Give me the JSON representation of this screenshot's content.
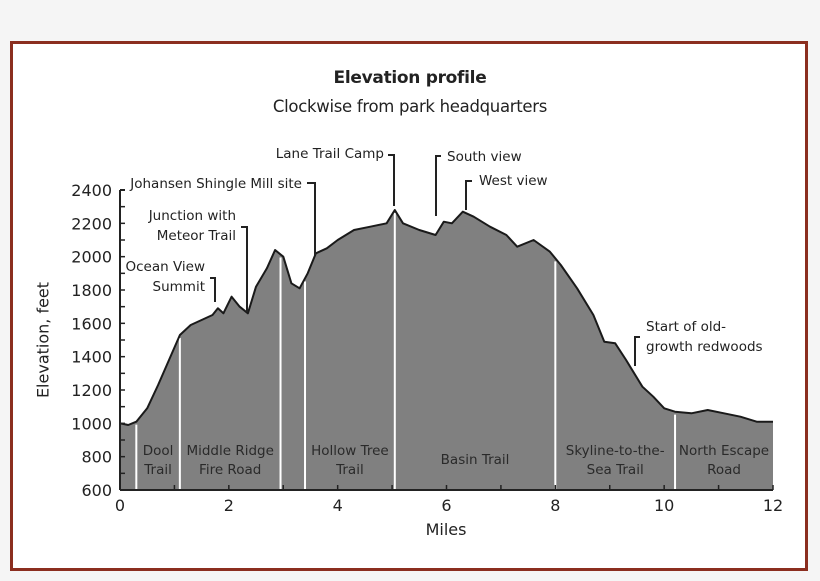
{
  "chart_data": {
    "type": "area",
    "title": "Elevation profile",
    "subtitle": "Clockwise from park headquarters",
    "xlabel": "Miles",
    "ylabel": "Elevation, feet",
    "xlim": [
      0,
      12
    ],
    "ylim": [
      600,
      2400
    ],
    "xticks": [
      0,
      2,
      4,
      6,
      8,
      10,
      12
    ],
    "yticks": [
      600,
      800,
      1000,
      1200,
      1400,
      1600,
      1800,
      2000,
      2200,
      2400
    ],
    "grid": false,
    "fill_color": "#808080",
    "line_color": "#1a1a1a",
    "series": [
      {
        "name": "Elevation",
        "x": [
          0,
          0.15,
          0.3,
          0.5,
          0.7,
          0.9,
          1.1,
          1.3,
          1.5,
          1.7,
          1.8,
          1.9,
          2.05,
          2.2,
          2.35,
          2.5,
          2.7,
          2.85,
          3.0,
          3.15,
          3.3,
          3.45,
          3.6,
          3.8,
          4.0,
          4.3,
          4.6,
          4.9,
          5.05,
          5.2,
          5.5,
          5.8,
          5.95,
          6.1,
          6.3,
          6.5,
          6.8,
          7.1,
          7.3,
          7.6,
          7.9,
          8.1,
          8.4,
          8.7,
          8.9,
          9.1,
          9.3,
          9.45,
          9.6,
          9.8,
          10.0,
          10.2,
          10.5,
          10.8,
          11.1,
          11.4,
          11.7,
          12.0
        ],
        "values": [
          1000,
          990,
          1010,
          1090,
          1230,
          1380,
          1530,
          1590,
          1620,
          1650,
          1690,
          1660,
          1760,
          1700,
          1660,
          1820,
          1930,
          2040,
          2000,
          1840,
          1810,
          1900,
          2020,
          2050,
          2100,
          2160,
          2180,
          2200,
          2280,
          2200,
          2160,
          2130,
          2210,
          2200,
          2270,
          2240,
          2180,
          2130,
          2060,
          2100,
          2030,
          1950,
          1810,
          1650,
          1490,
          1480,
          1380,
          1300,
          1220,
          1160,
          1090,
          1070,
          1060,
          1080,
          1060,
          1040,
          1010,
          1010
        ]
      }
    ],
    "trail_segments": [
      {
        "name": "Dool Trail",
        "start": 0.3,
        "end": 1.1,
        "label_lines": [
          "Dool",
          "Trail"
        ]
      },
      {
        "name": "Middle Ridge Fire Road",
        "start": 1.1,
        "end": 2.95,
        "label_lines": [
          "Middle Ridge",
          "Fire Road"
        ]
      },
      {
        "name": "Hollow Tree Trail",
        "start": 3.4,
        "end": 5.05,
        "label_lines": [
          "Hollow Tree",
          "Trail"
        ]
      },
      {
        "name": "Basin Trail",
        "start": 5.05,
        "end": 8.0,
        "label_lines": [
          "Basin Trail"
        ]
      },
      {
        "name": "Skyline-to-the-Sea Trail",
        "start": 8.0,
        "end": 10.2,
        "label_lines": [
          "Skyline-to-the-",
          "Sea Trail"
        ]
      },
      {
        "name": "North Escape Road",
        "start": 10.2,
        "end": 12.0,
        "label_lines": [
          "North Escape",
          "Road"
        ]
      }
    ],
    "segment_dividers_miles": [
      0.3,
      1.1,
      2.95,
      3.4,
      5.05,
      8.0,
      10.2
    ],
    "annotations": [
      {
        "label_lines": [
          "Ocean View",
          "Summit"
        ],
        "mile": 1.8,
        "elevation": 1690
      },
      {
        "label_lines": [
          "Junction with",
          "Meteor Trail"
        ],
        "mile": 2.35,
        "elevation": 1660
      },
      {
        "label_lines": [
          "Johansen Shingle Mill site"
        ],
        "mile": 3.6,
        "elevation": 2020
      },
      {
        "label_lines": [
          "Lane Trail Camp"
        ],
        "mile": 5.05,
        "elevation": 2280
      },
      {
        "label_lines": [
          "South view"
        ],
        "mile": 5.8,
        "elevation": 2130
      },
      {
        "label_lines": [
          "West view"
        ],
        "mile": 6.3,
        "elevation": 2270
      },
      {
        "label_lines": [
          "Start of old-",
          "growth redwoods"
        ],
        "mile": 9.45,
        "elevation": 1300
      }
    ]
  }
}
